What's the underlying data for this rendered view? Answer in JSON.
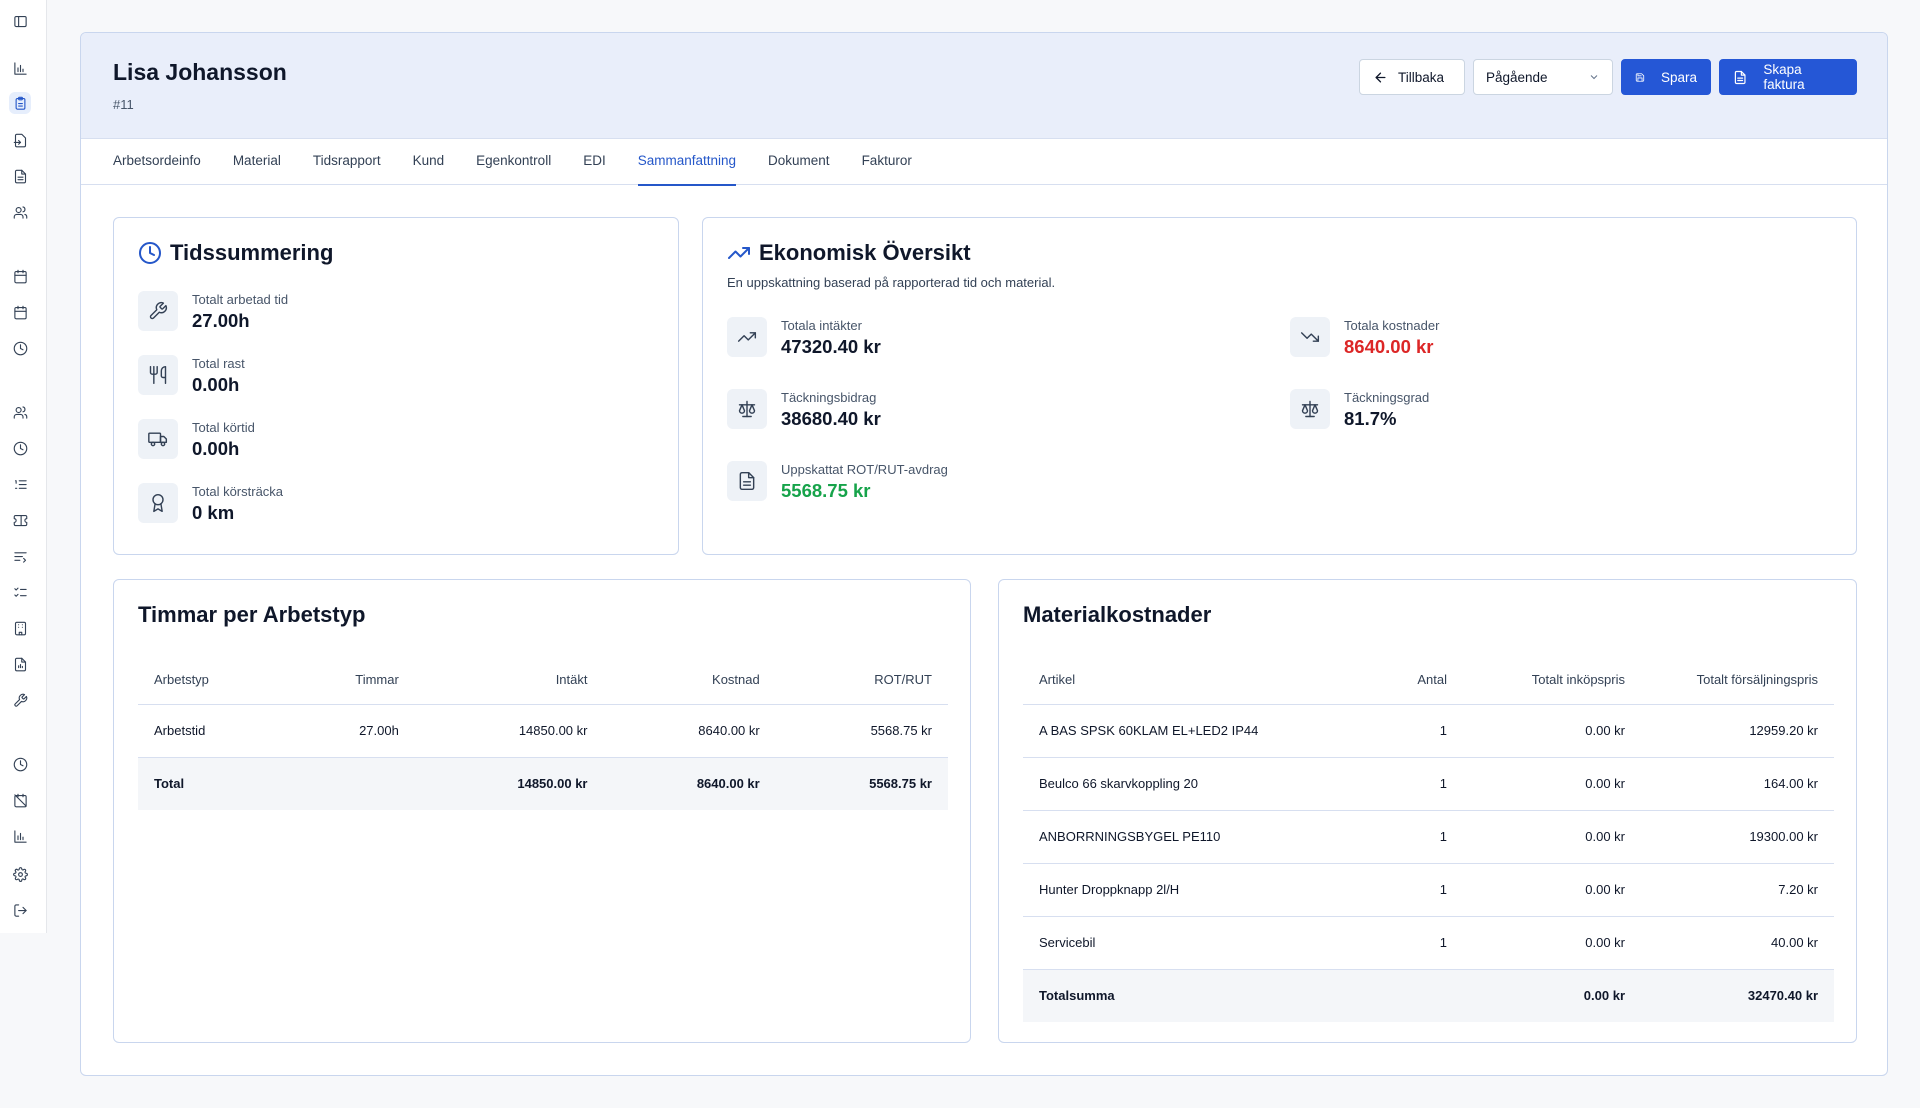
{
  "header": {
    "title": "Lisa Johansson",
    "order_id": "#11",
    "back_label": "Tillbaka",
    "status_value": "Pågående",
    "save_label": "Spara",
    "invoice_label": "Skapa faktura"
  },
  "tabs": [
    {
      "label": "Arbetsordeinfo"
    },
    {
      "label": "Material"
    },
    {
      "label": "Tidsrapport"
    },
    {
      "label": "Kund"
    },
    {
      "label": "Egenkontroll"
    },
    {
      "label": "EDI"
    },
    {
      "label": "Sammanfattning"
    },
    {
      "label": "Dokument"
    },
    {
      "label": "Fakturor"
    }
  ],
  "time_summary": {
    "title": "Tidssummering",
    "items": [
      {
        "label": "Totalt arbetad tid",
        "value": "27.00h",
        "icon": "wrench-icon"
      },
      {
        "label": "Total rast",
        "value": "0.00h",
        "icon": "utensils-icon"
      },
      {
        "label": "Total körtid",
        "value": "0.00h",
        "icon": "truck-icon"
      },
      {
        "label": "Total körsträcka",
        "value": "0 km",
        "icon": "award-icon"
      }
    ]
  },
  "economy": {
    "title": "Ekonomisk Översikt",
    "subtitle": "En uppskattning baserad på rapporterad tid och material.",
    "items": [
      {
        "label": "Totala intäkter",
        "value": "47320.40 kr",
        "icon": "trending-up-icon"
      },
      {
        "label": "Totala kostnader",
        "value": "8640.00 kr",
        "icon": "trending-down-icon",
        "color": "#dc2626"
      },
      {
        "label": "Täckningsbidrag",
        "value": "38680.40 kr",
        "icon": "scale-icon"
      },
      {
        "label": "Täckningsgrad",
        "value": "81.7%",
        "icon": "scale-icon"
      },
      {
        "label": "Uppskattat ROT/RUT-avdrag",
        "value": "5568.75 kr",
        "icon": "document-icon",
        "color": "#16a34a"
      }
    ]
  },
  "hours_table": {
    "title": "Timmar per Arbetstyp",
    "columns": [
      "Arbetstyp",
      "Timmar",
      "Intäkt",
      "Kostnad",
      "ROT/RUT"
    ],
    "rows": [
      [
        "Arbetstid",
        "27.00h",
        "14850.00 kr",
        "8640.00 kr",
        "5568.75 kr"
      ]
    ],
    "total": [
      "Total",
      "",
      "14850.00 kr",
      "8640.00 kr",
      "5568.75 kr"
    ]
  },
  "material_table": {
    "title": "Materialkostnader",
    "columns": [
      "Artikel",
      "Antal",
      "Totalt inköpspris",
      "Totalt försäljningspris"
    ],
    "rows": [
      [
        "A BAS SPSK 60KLAM EL+LED2 IP44",
        "1",
        "0.00 kr",
        "12959.20 kr"
      ],
      [
        "Beulco 66 skarvkoppling 20",
        "1",
        "0.00 kr",
        "164.00 kr"
      ],
      [
        "ANBORRNINGSBYGEL PE110",
        "1",
        "0.00 kr",
        "19300.00 kr"
      ],
      [
        "Hunter Droppknapp 2l/H",
        "1",
        "0.00 kr",
        "7.20 kr"
      ],
      [
        "Servicebil",
        "1",
        "0.00 kr",
        "40.00 kr"
      ]
    ],
    "total": [
      "Totalsumma",
      "",
      "0.00 kr",
      "32470.40 kr"
    ]
  },
  "colors": {
    "accent": "#2557d6",
    "negative": "#dc2626",
    "positive": "#16a34a"
  }
}
